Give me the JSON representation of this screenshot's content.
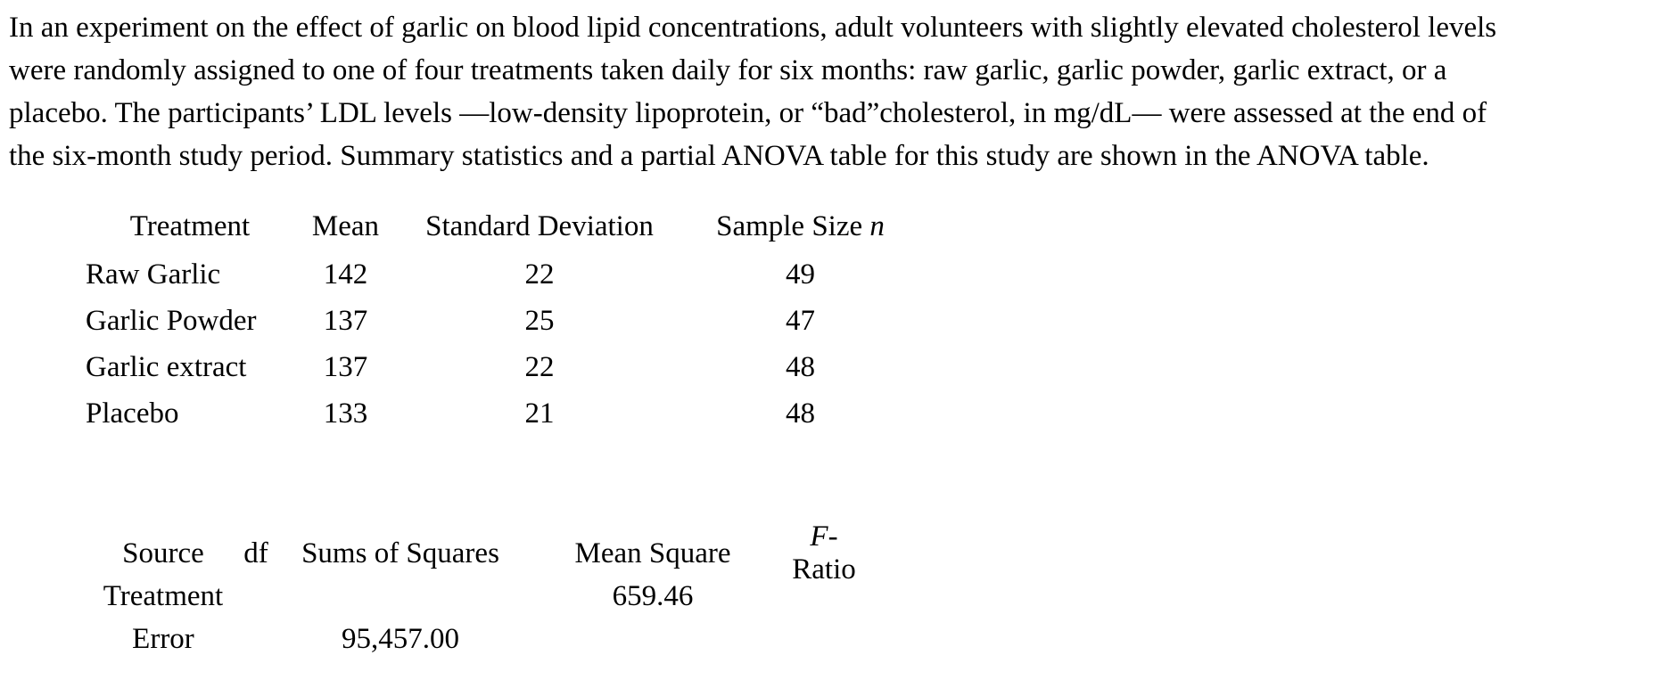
{
  "page": {
    "background_color": "#ffffff",
    "text_color": "#000000"
  },
  "paragraph": {
    "lines": [
      "In an experiment on the effect of garlic on blood lipid concentrations, adult volunteers with slightly elevated cholesterol levels",
      "were randomly assigned to one of four treatments taken daily for six months: raw garlic, garlic powder, garlic extract, or a",
      "placebo. The participants’ LDL levels —low-density lipoprotein, or “bad”cholesterol, in mg/dL— were assessed at the end of",
      "the six-month study period. Summary statistics and a partial ANOVA table for this study are shown in the ANOVA table."
    ]
  },
  "summary_table": {
    "headers": {
      "treatment": "Treatment",
      "mean": "Mean",
      "sd": "Standard Deviation",
      "n_prefix": "Sample Size",
      "n_symbol": "n"
    },
    "rows": [
      {
        "treatment": "Raw Garlic",
        "mean": "142",
        "sd": "22",
        "n": "49"
      },
      {
        "treatment": "Garlic Powder",
        "mean": "137",
        "sd": "25",
        "n": "47"
      },
      {
        "treatment": "Garlic extract",
        "mean": "137",
        "sd": "22",
        "n": "48"
      },
      {
        "treatment": "Placebo",
        "mean": "133",
        "sd": "21",
        "n": "48"
      }
    ]
  },
  "anova_table": {
    "headers": {
      "source": "Source",
      "df": "df",
      "ss": "Sums of Squares",
      "ms": "Mean Square",
      "f_symbol": "F",
      "f_suffix": "-Ratio"
    },
    "rows": [
      {
        "source": "Treatment",
        "df": "",
        "ss": "",
        "ms": "659.46",
        "f": ""
      },
      {
        "source": "Error",
        "df": "",
        "ss": "95,457.00",
        "ms": "",
        "f": ""
      }
    ]
  }
}
